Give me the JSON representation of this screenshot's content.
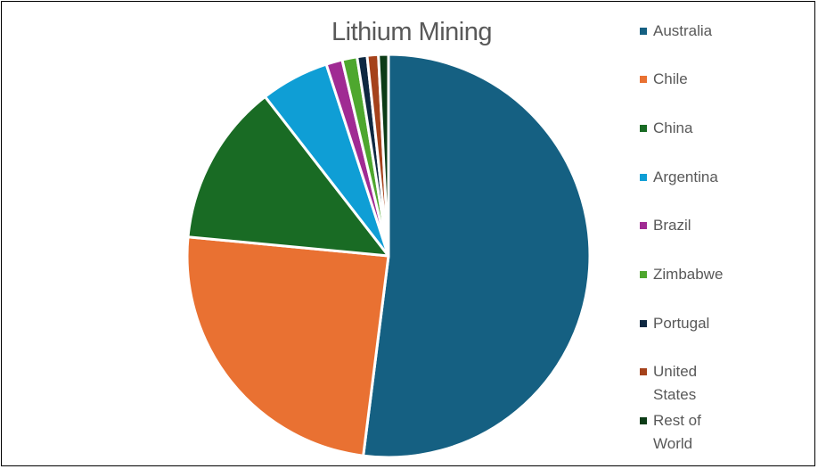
{
  "chart_data": {
    "type": "pie",
    "title": "Lithium Mining",
    "legend_position": "right",
    "start_angle_deg": 0,
    "direction": "clockwise",
    "slices": [
      {
        "label": "Australia",
        "value": 52.0,
        "color": "#156082"
      },
      {
        "label": "Chile",
        "value": 24.5,
        "color": "#E97132"
      },
      {
        "label": "China",
        "value": 13.0,
        "color": "#196B24"
      },
      {
        "label": "Argentina",
        "value": 5.5,
        "color": "#0F9ED5"
      },
      {
        "label": "Brazil",
        "value": 1.3,
        "color": "#A02B93"
      },
      {
        "label": "Zimbabwe",
        "value": 1.2,
        "color": "#4EA72E"
      },
      {
        "label": "Portugal",
        "value": 0.8,
        "color": "#0E2841"
      },
      {
        "label": "United States",
        "value": 0.9,
        "color": "#A5421B"
      },
      {
        "label": "Rest of World",
        "value": 0.8,
        "color": "#0C3C17"
      }
    ]
  },
  "legend": {
    "items": [
      {
        "lines": [
          "Australia"
        ],
        "color": "#156082"
      },
      {
        "lines": [
          "Chile"
        ],
        "color": "#E97132"
      },
      {
        "lines": [
          "China"
        ],
        "color": "#196B24"
      },
      {
        "lines": [
          "Argentina"
        ],
        "color": "#0F9ED5"
      },
      {
        "lines": [
          "Brazil"
        ],
        "color": "#A02B93"
      },
      {
        "lines": [
          "Zimbabwe"
        ],
        "color": "#4EA72E"
      },
      {
        "lines": [
          "Portugal"
        ],
        "color": "#0E2841"
      },
      {
        "lines": [
          "United",
          "States"
        ],
        "color": "#A5421B"
      },
      {
        "lines": [
          "Rest of",
          "World"
        ],
        "color": "#0C3C17"
      }
    ]
  }
}
